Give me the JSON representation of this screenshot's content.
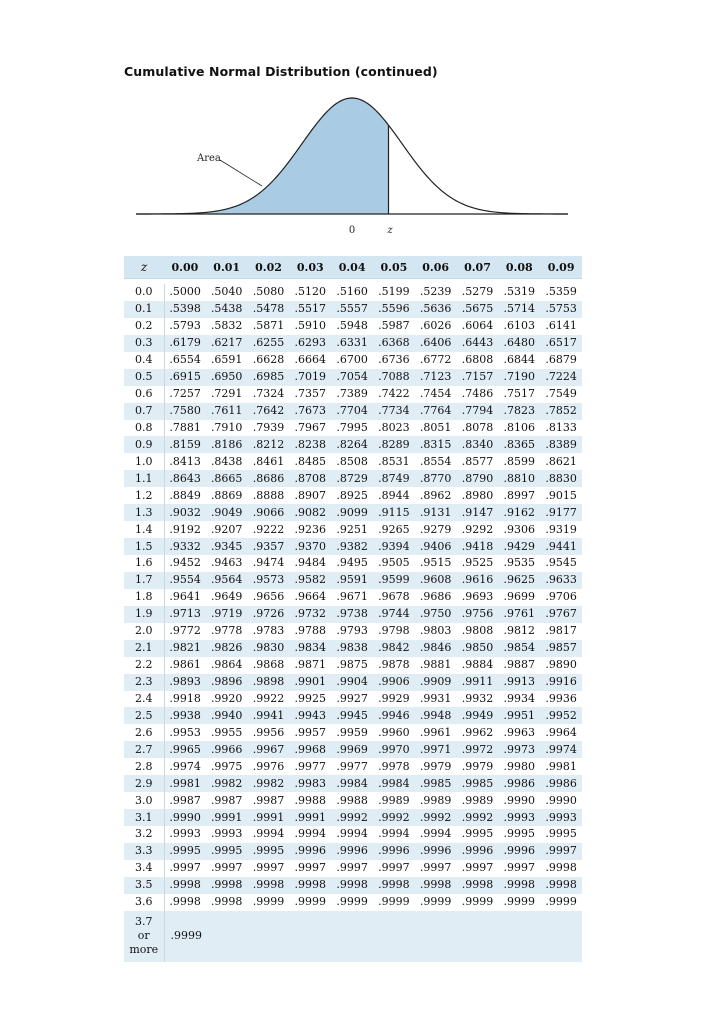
{
  "title": "Cumulative Normal Distribution (continued)",
  "figure": {
    "area_label": "Area",
    "zero_label": "0",
    "z_label": "z",
    "shaded_color": "#a9cbe3",
    "z_value": 0.7
  },
  "table": {
    "z_header": "z",
    "columns": [
      "0.00",
      "0.01",
      "0.02",
      "0.03",
      "0.04",
      "0.05",
      "0.06",
      "0.07",
      "0.08",
      "0.09"
    ],
    "rows": [
      {
        "z": "0.0",
        "values": [
          ".5000",
          ".5040",
          ".5080",
          ".5120",
          ".5160",
          ".5199",
          ".5239",
          ".5279",
          ".5319",
          ".5359"
        ]
      },
      {
        "z": "0.1",
        "values": [
          ".5398",
          ".5438",
          ".5478",
          ".5517",
          ".5557",
          ".5596",
          ".5636",
          ".5675",
          ".5714",
          ".5753"
        ]
      },
      {
        "z": "0.2",
        "values": [
          ".5793",
          ".5832",
          ".5871",
          ".5910",
          ".5948",
          ".5987",
          ".6026",
          ".6064",
          ".6103",
          ".6141"
        ]
      },
      {
        "z": "0.3",
        "values": [
          ".6179",
          ".6217",
          ".6255",
          ".6293",
          ".6331",
          ".6368",
          ".6406",
          ".6443",
          ".6480",
          ".6517"
        ]
      },
      {
        "z": "0.4",
        "values": [
          ".6554",
          ".6591",
          ".6628",
          ".6664",
          ".6700",
          ".6736",
          ".6772",
          ".6808",
          ".6844",
          ".6879"
        ]
      },
      {
        "z": "0.5",
        "values": [
          ".6915",
          ".6950",
          ".6985",
          ".7019",
          ".7054",
          ".7088",
          ".7123",
          ".7157",
          ".7190",
          ".7224"
        ]
      },
      {
        "z": "0.6",
        "values": [
          ".7257",
          ".7291",
          ".7324",
          ".7357",
          ".7389",
          ".7422",
          ".7454",
          ".7486",
          ".7517",
          ".7549"
        ]
      },
      {
        "z": "0.7",
        "values": [
          ".7580",
          ".7611",
          ".7642",
          ".7673",
          ".7704",
          ".7734",
          ".7764",
          ".7794",
          ".7823",
          ".7852"
        ]
      },
      {
        "z": "0.8",
        "values": [
          ".7881",
          ".7910",
          ".7939",
          ".7967",
          ".7995",
          ".8023",
          ".8051",
          ".8078",
          ".8106",
          ".8133"
        ]
      },
      {
        "z": "0.9",
        "values": [
          ".8159",
          ".8186",
          ".8212",
          ".8238",
          ".8264",
          ".8289",
          ".8315",
          ".8340",
          ".8365",
          ".8389"
        ]
      },
      {
        "z": "1.0",
        "values": [
          ".8413",
          ".8438",
          ".8461",
          ".8485",
          ".8508",
          ".8531",
          ".8554",
          ".8577",
          ".8599",
          ".8621"
        ]
      },
      {
        "z": "1.1",
        "values": [
          ".8643",
          ".8665",
          ".8686",
          ".8708",
          ".8729",
          ".8749",
          ".8770",
          ".8790",
          ".8810",
          ".8830"
        ]
      },
      {
        "z": "1.2",
        "values": [
          ".8849",
          ".8869",
          ".8888",
          ".8907",
          ".8925",
          ".8944",
          ".8962",
          ".8980",
          ".8997",
          ".9015"
        ]
      },
      {
        "z": "1.3",
        "values": [
          ".9032",
          ".9049",
          ".9066",
          ".9082",
          ".9099",
          ".9115",
          ".9131",
          ".9147",
          ".9162",
          ".9177"
        ]
      },
      {
        "z": "1.4",
        "values": [
          ".9192",
          ".9207",
          ".9222",
          ".9236",
          ".9251",
          ".9265",
          ".9279",
          ".9292",
          ".9306",
          ".9319"
        ]
      },
      {
        "z": "1.5",
        "values": [
          ".9332",
          ".9345",
          ".9357",
          ".9370",
          ".9382",
          ".9394",
          ".9406",
          ".9418",
          ".9429",
          ".9441"
        ]
      },
      {
        "z": "1.6",
        "values": [
          ".9452",
          ".9463",
          ".9474",
          ".9484",
          ".9495",
          ".9505",
          ".9515",
          ".9525",
          ".9535",
          ".9545"
        ]
      },
      {
        "z": "1.7",
        "values": [
          ".9554",
          ".9564",
          ".9573",
          ".9582",
          ".9591",
          ".9599",
          ".9608",
          ".9616",
          ".9625",
          ".9633"
        ]
      },
      {
        "z": "1.8",
        "values": [
          ".9641",
          ".9649",
          ".9656",
          ".9664",
          ".9671",
          ".9678",
          ".9686",
          ".9693",
          ".9699",
          ".9706"
        ]
      },
      {
        "z": "1.9",
        "values": [
          ".9713",
          ".9719",
          ".9726",
          ".9732",
          ".9738",
          ".9744",
          ".9750",
          ".9756",
          ".9761",
          ".9767"
        ]
      },
      {
        "z": "2.0",
        "values": [
          ".9772",
          ".9778",
          ".9783",
          ".9788",
          ".9793",
          ".9798",
          ".9803",
          ".9808",
          ".9812",
          ".9817"
        ]
      },
      {
        "z": "2.1",
        "values": [
          ".9821",
          ".9826",
          ".9830",
          ".9834",
          ".9838",
          ".9842",
          ".9846",
          ".9850",
          ".9854",
          ".9857"
        ]
      },
      {
        "z": "2.2",
        "values": [
          ".9861",
          ".9864",
          ".9868",
          ".9871",
          ".9875",
          ".9878",
          ".9881",
          ".9884",
          ".9887",
          ".9890"
        ]
      },
      {
        "z": "2.3",
        "values": [
          ".9893",
          ".9896",
          ".9898",
          ".9901",
          ".9904",
          ".9906",
          ".9909",
          ".9911",
          ".9913",
          ".9916"
        ]
      },
      {
        "z": "2.4",
        "values": [
          ".9918",
          ".9920",
          ".9922",
          ".9925",
          ".9927",
          ".9929",
          ".9931",
          ".9932",
          ".9934",
          ".9936"
        ]
      },
      {
        "z": "2.5",
        "values": [
          ".9938",
          ".9940",
          ".9941",
          ".9943",
          ".9945",
          ".9946",
          ".9948",
          ".9949",
          ".9951",
          ".9952"
        ]
      },
      {
        "z": "2.6",
        "values": [
          ".9953",
          ".9955",
          ".9956",
          ".9957",
          ".9959",
          ".9960",
          ".9961",
          ".9962",
          ".9963",
          ".9964"
        ]
      },
      {
        "z": "2.7",
        "values": [
          ".9965",
          ".9966",
          ".9967",
          ".9968",
          ".9969",
          ".9970",
          ".9971",
          ".9972",
          ".9973",
          ".9974"
        ]
      },
      {
        "z": "2.8",
        "values": [
          ".9974",
          ".9975",
          ".9976",
          ".9977",
          ".9977",
          ".9978",
          ".9979",
          ".9979",
          ".9980",
          ".9981"
        ]
      },
      {
        "z": "2.9",
        "values": [
          ".9981",
          ".9982",
          ".9982",
          ".9983",
          ".9984",
          ".9984",
          ".9985",
          ".9985",
          ".9986",
          ".9986"
        ]
      },
      {
        "z": "3.0",
        "values": [
          ".9987",
          ".9987",
          ".9987",
          ".9988",
          ".9988",
          ".9989",
          ".9989",
          ".9989",
          ".9990",
          ".9990"
        ]
      },
      {
        "z": "3.1",
        "values": [
          ".9990",
          ".9991",
          ".9991",
          ".9991",
          ".9992",
          ".9992",
          ".9992",
          ".9992",
          ".9993",
          ".9993"
        ]
      },
      {
        "z": "3.2",
        "values": [
          ".9993",
          ".9993",
          ".9994",
          ".9994",
          ".9994",
          ".9994",
          ".9994",
          ".9995",
          ".9995",
          ".9995"
        ]
      },
      {
        "z": "3.3",
        "values": [
          ".9995",
          ".9995",
          ".9995",
          ".9996",
          ".9996",
          ".9996",
          ".9996",
          ".9996",
          ".9996",
          ".9997"
        ]
      },
      {
        "z": "3.4",
        "values": [
          ".9997",
          ".9997",
          ".9997",
          ".9997",
          ".9997",
          ".9997",
          ".9997",
          ".9997",
          ".9997",
          ".9998"
        ]
      },
      {
        "z": "3.5",
        "values": [
          ".9998",
          ".9998",
          ".9998",
          ".9998",
          ".9998",
          ".9998",
          ".9998",
          ".9998",
          ".9998",
          ".9998"
        ]
      },
      {
        "z": "3.6",
        "values": [
          ".9998",
          ".9998",
          ".9999",
          ".9999",
          ".9999",
          ".9999",
          ".9999",
          ".9999",
          ".9999",
          ".9999"
        ]
      }
    ],
    "last_row": {
      "z_lines": [
        "3.7",
        "or",
        "more"
      ],
      "value": ".9999"
    }
  }
}
